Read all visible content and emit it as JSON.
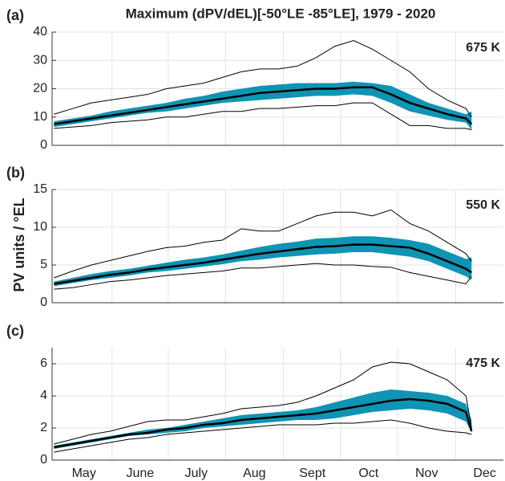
{
  "chart_data": [
    {
      "type": "line",
      "title": "Maximum (dPV/dEL)[-50°LE -85°LE], 1979 - 2020",
      "panel_label": "(a)",
      "annotation": "675 K",
      "x": [
        0,
        10,
        20,
        30,
        40,
        50,
        60,
        70,
        80,
        90,
        100,
        110,
        120,
        130,
        140,
        150,
        160,
        170,
        180,
        190,
        200,
        210,
        220,
        223
      ],
      "xlim": [
        -1,
        240
      ],
      "ylim": [
        0,
        40
      ],
      "yticks": [
        0,
        10,
        20,
        30,
        40
      ],
      "grid": true,
      "band": {
        "color": "#0f94b4",
        "upper": [
          8.5,
          9.5,
          10.5,
          12,
          13,
          14,
          15,
          16.5,
          17.5,
          19,
          20,
          21,
          21.5,
          22,
          22,
          22,
          22.5,
          22,
          21,
          18,
          15,
          13,
          11,
          12
        ],
        "lower": [
          6.5,
          7.5,
          8.5,
          9.5,
          10.5,
          11.5,
          12,
          13,
          14,
          15,
          15.5,
          16,
          16.5,
          17,
          17.5,
          17.5,
          18,
          17.5,
          15,
          12,
          10.5,
          9,
          8,
          5.5
        ]
      },
      "series": [
        {
          "color": "#000000",
          "width": 1,
          "values": [
            11,
            13,
            15,
            16,
            17,
            18,
            20,
            21,
            22,
            24,
            26,
            27,
            27,
            28,
            31,
            35,
            37,
            34,
            30,
            26,
            20,
            16,
            13,
            10
          ]
        },
        {
          "color": "#000000",
          "width": 1,
          "values": [
            6,
            6.5,
            7,
            8,
            8.5,
            9,
            10,
            10,
            11,
            12,
            12,
            13,
            13,
            13.5,
            14,
            14,
            15,
            15,
            11,
            7,
            7,
            6,
            6,
            5.5
          ]
        },
        {
          "color": "#000000",
          "width": 2.5,
          "values": [
            7.5,
            8.5,
            9.5,
            10.5,
            11.5,
            12.5,
            13.5,
            14.5,
            15.5,
            16.5,
            17.5,
            18.5,
            19,
            19.5,
            20,
            20,
            20.5,
            20.5,
            18,
            15,
            13,
            11,
            9.5,
            7.5
          ]
        }
      ]
    },
    {
      "type": "line",
      "panel_label": "(b)",
      "annotation": "550 K",
      "y_label": "PV units / °EL",
      "x": [
        0,
        10,
        20,
        30,
        40,
        50,
        60,
        70,
        80,
        90,
        100,
        110,
        120,
        130,
        140,
        150,
        160,
        170,
        180,
        190,
        200,
        210,
        220,
        223
      ],
      "xlim": [
        -1,
        240
      ],
      "ylim": [
        0,
        15
      ],
      "yticks": [
        0,
        5,
        10,
        15
      ],
      "grid": true,
      "band": {
        "color": "#0f94b4",
        "upper": [
          2.8,
          3.3,
          3.8,
          4.2,
          4.5,
          4.9,
          5.3,
          5.7,
          6.0,
          6.4,
          6.9,
          7.4,
          7.8,
          8.1,
          8.5,
          8.6,
          8.8,
          8.8,
          8.6,
          8.3,
          7.8,
          6.8,
          5.8,
          6.0
        ],
        "lower": [
          2.2,
          2.6,
          3.0,
          3.3,
          3.6,
          4.0,
          4.2,
          4.5,
          4.8,
          5.1,
          5.5,
          5.7,
          6.0,
          6.2,
          6.4,
          6.5,
          6.7,
          6.7,
          6.4,
          6.1,
          5.5,
          4.5,
          3.5,
          3.0
        ]
      },
      "series": [
        {
          "color": "#000000",
          "width": 1,
          "values": [
            3.3,
            4.2,
            5.0,
            5.6,
            6.2,
            6.8,
            7.3,
            7.5,
            8,
            8.3,
            9.8,
            9.5,
            9.5,
            10.5,
            11.5,
            12,
            12,
            11.5,
            12.3,
            10.5,
            9.5,
            8,
            6.5,
            5.5
          ]
        },
        {
          "color": "#000000",
          "width": 1,
          "values": [
            1.8,
            2.0,
            2.4,
            2.8,
            3.0,
            3.3,
            3.6,
            3.8,
            4.0,
            4.2,
            4.6,
            4.6,
            4.8,
            5.0,
            5.2,
            5.0,
            5.0,
            4.8,
            4.7,
            4.0,
            3.5,
            3.0,
            2.5,
            3.5
          ]
        },
        {
          "color": "#000000",
          "width": 2.5,
          "values": [
            2.5,
            2.9,
            3.3,
            3.7,
            4.0,
            4.4,
            4.7,
            5.0,
            5.3,
            5.7,
            6.1,
            6.5,
            6.8,
            7.1,
            7.4,
            7.5,
            7.7,
            7.7,
            7.5,
            7.3,
            6.5,
            5.5,
            4.5,
            4.0
          ]
        }
      ]
    },
    {
      "type": "line",
      "panel_label": "(c)",
      "annotation": "475 K",
      "x": [
        0,
        10,
        20,
        30,
        40,
        50,
        60,
        70,
        80,
        90,
        100,
        110,
        120,
        130,
        140,
        150,
        160,
        170,
        180,
        190,
        200,
        210,
        220,
        223
      ],
      "xlim": [
        -1,
        240
      ],
      "ylim": [
        0,
        7
      ],
      "yticks": [
        0,
        2,
        4,
        6
      ],
      "grid": true,
      "xticks": [
        {
          "value": 16,
          "label": "May"
        },
        {
          "value": 46,
          "label": "June"
        },
        {
          "value": 76,
          "label": "July"
        },
        {
          "value": 107,
          "label": "Aug"
        },
        {
          "value": 138,
          "label": "Sept"
        },
        {
          "value": 168,
          "label": "Oct"
        },
        {
          "value": 199,
          "label": "Nov"
        },
        {
          "value": 230,
          "label": "Dec"
        }
      ],
      "band": {
        "color": "#0f94b4",
        "upper": [
          0.9,
          1.1,
          1.3,
          1.5,
          1.7,
          1.9,
          2.0,
          2.2,
          2.4,
          2.6,
          2.8,
          2.9,
          3.0,
          3.1,
          3.3,
          3.6,
          3.9,
          4.2,
          4.4,
          4.3,
          4.2,
          4.0,
          3.5,
          2.5
        ],
        "lower": [
          0.7,
          0.9,
          1.1,
          1.3,
          1.5,
          1.6,
          1.7,
          1.8,
          2.0,
          2.1,
          2.2,
          2.3,
          2.4,
          2.5,
          2.5,
          2.6,
          2.8,
          3.0,
          3.1,
          3.2,
          3.1,
          2.9,
          2.4,
          1.7
        ]
      },
      "series": [
        {
          "color": "#000000",
          "width": 1,
          "values": [
            1.0,
            1.3,
            1.6,
            1.8,
            2.1,
            2.4,
            2.5,
            2.5,
            2.7,
            2.9,
            3.2,
            3.3,
            3.4,
            3.6,
            4.0,
            4.5,
            5.0,
            5.8,
            6.1,
            6.0,
            5.5,
            5.0,
            4.0,
            2.0
          ]
        },
        {
          "color": "#000000",
          "width": 1,
          "values": [
            0.5,
            0.7,
            0.9,
            1.1,
            1.3,
            1.4,
            1.6,
            1.7,
            1.8,
            1.9,
            2.0,
            2.1,
            2.2,
            2.2,
            2.2,
            2.3,
            2.3,
            2.4,
            2.5,
            2.3,
            2.0,
            1.8,
            1.7,
            1.6
          ]
        },
        {
          "color": "#000000",
          "width": 2.5,
          "values": [
            0.8,
            1.0,
            1.2,
            1.4,
            1.6,
            1.7,
            1.9,
            2.0,
            2.2,
            2.3,
            2.5,
            2.6,
            2.7,
            2.8,
            2.9,
            3.1,
            3.3,
            3.5,
            3.7,
            3.8,
            3.7,
            3.5,
            3.0,
            1.8
          ]
        }
      ]
    }
  ]
}
